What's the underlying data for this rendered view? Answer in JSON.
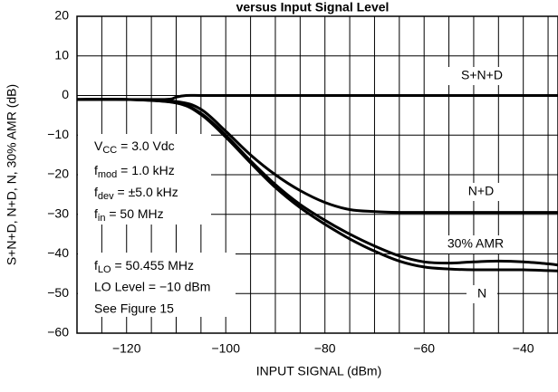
{
  "chart_data": {
    "type": "line",
    "title": "versus Input Signal Level",
    "xlabel": "INPUT SIGNAL (dBm)",
    "ylabel": "S+N+D, N+D, N, 30% AMR (dB)",
    "xlim": [
      -130,
      -33
    ],
    "ylim": [
      -60,
      20
    ],
    "x_ticks": [
      -120,
      -100,
      -80,
      -60,
      -40
    ],
    "x_tick_labels": [
      "−120",
      "−100",
      "−80",
      "−60",
      "−40"
    ],
    "y_ticks": [
      20,
      10,
      0,
      -10,
      -20,
      -30,
      -40,
      -50,
      -60
    ],
    "y_tick_labels": [
      "20",
      "10",
      "0",
      "−10",
      "−20",
      "−30",
      "−40",
      "−50",
      "−60"
    ],
    "grid": true,
    "series": [
      {
        "name": "S+N+D",
        "x": [
          -130,
          -120,
          -113,
          -111,
          -110,
          -108,
          -105,
          -100,
          -90,
          -80,
          -70,
          -60,
          -50,
          -40,
          -33
        ],
        "y": [
          -1.0,
          -1.0,
          -1.0,
          -0.9,
          -0.4,
          0.0,
          0.0,
          0.0,
          0.0,
          0.0,
          0.0,
          0.0,
          0.0,
          0.0,
          0.0
        ]
      },
      {
        "name": "N+D",
        "x": [
          -130,
          -120,
          -110,
          -105,
          -100,
          -95,
          -90,
          -85,
          -80,
          -75,
          -70,
          -65,
          -60,
          -50,
          -40,
          -33
        ],
        "y": [
          -1.0,
          -1.0,
          -1.5,
          -3.5,
          -9.0,
          -15.0,
          -20.0,
          -24.0,
          -27.0,
          -28.8,
          -29.3,
          -29.5,
          -29.5,
          -29.5,
          -29.5,
          -29.5
        ]
      },
      {
        "name": "30% AMR",
        "x": [
          -130,
          -120,
          -110,
          -105,
          -100,
          -95,
          -90,
          -85,
          -80,
          -75,
          -70,
          -65,
          -60,
          -55,
          -50,
          -45,
          -40,
          -35,
          -33
        ],
        "y": [
          -1.0,
          -1.0,
          -1.8,
          -4.5,
          -10.0,
          -16.5,
          -22.5,
          -27.5,
          -31.5,
          -35.0,
          -38.0,
          -40.5,
          -42.0,
          -42.3,
          -42.0,
          -41.8,
          -42.0,
          -42.5,
          -42.8
        ]
      },
      {
        "name": "N",
        "x": [
          -130,
          -120,
          -110,
          -105,
          -100,
          -95,
          -90,
          -85,
          -80,
          -75,
          -70,
          -65,
          -60,
          -55,
          -50,
          -45,
          -40,
          -35,
          -33
        ],
        "y": [
          -1.0,
          -1.0,
          -1.9,
          -4.8,
          -10.5,
          -17.0,
          -23.2,
          -28.3,
          -32.5,
          -36.2,
          -39.3,
          -41.8,
          -43.3,
          -43.8,
          -44.0,
          -44.0,
          -44.0,
          -44.2,
          -44.3
        ]
      }
    ],
    "conditions": [
      {
        "main": "V",
        "sub": "CC",
        "rest": " = 3.0 Vdc"
      },
      {
        "main": "f",
        "sub": "mod",
        "rest": " = 1.0 kHz"
      },
      {
        "main": "f",
        "sub": "dev",
        "rest": " = ±5.0 kHz"
      },
      {
        "main": "f",
        "sub": "in",
        "rest": " = 50 MHz"
      },
      {
        "main": "f",
        "sub": "LO",
        "rest": " = 50.455 MHz"
      },
      {
        "main": "",
        "sub": "",
        "rest": "LO Level = −10 dBm"
      },
      {
        "main": "",
        "sub": "",
        "rest": "See Figure 15"
      }
    ]
  }
}
